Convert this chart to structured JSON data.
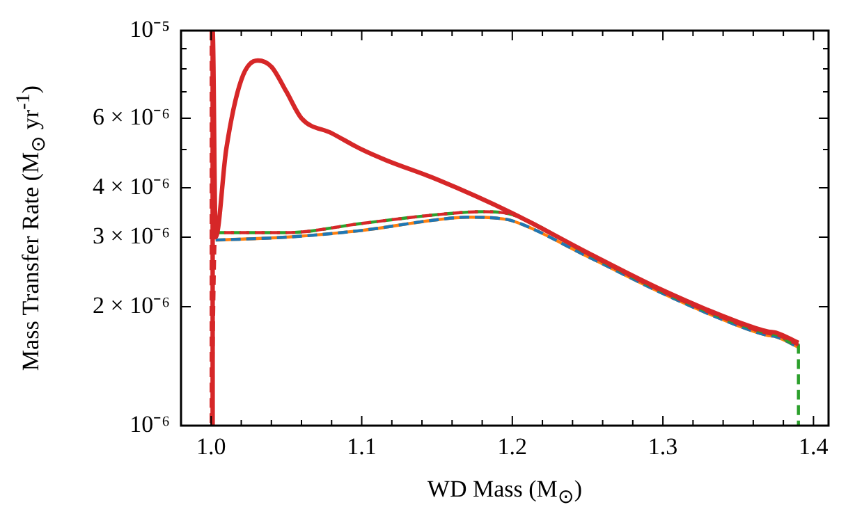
{
  "chart_data": {
    "type": "line",
    "xlabel": "WD Mass (M$_{⊙}$)",
    "ylabel": "Mass Transfer Rate (M$_{⊙}$ yr$^{-1}$)",
    "xlim": [
      0.98,
      1.41
    ],
    "xticks": [
      {
        "value": 1,
        "label": "1.0"
      },
      {
        "value": 1.02,
        "label": null
      },
      {
        "value": 1.04,
        "label": null
      },
      {
        "value": 1.06,
        "label": null
      },
      {
        "value": 1.08,
        "label": null
      },
      {
        "value": 1.1,
        "label": "1.1"
      },
      {
        "value": 1.12,
        "label": null
      },
      {
        "value": 1.14,
        "label": null
      },
      {
        "value": 1.16,
        "label": null
      },
      {
        "value": 1.18,
        "label": null
      },
      {
        "value": 1.2,
        "label": "1.2"
      },
      {
        "value": 1.22,
        "label": null
      },
      {
        "value": 1.24,
        "label": null
      },
      {
        "value": 1.26,
        "label": null
      },
      {
        "value": 1.28,
        "label": null
      },
      {
        "value": 1.3,
        "label": "1.3"
      },
      {
        "value": 1.32,
        "label": null
      },
      {
        "value": 1.34,
        "label": null
      },
      {
        "value": 1.36,
        "label": null
      },
      {
        "value": 1.38,
        "label": null
      },
      {
        "value": 1.4,
        "label": "1.4"
      }
    ],
    "ylim": [
      1e-06,
      1e-05
    ],
    "log": true,
    "yticks": [
      {
        "value": 1e-06,
        "label": "10⁻⁶"
      },
      {
        "value": 2e-06,
        "label": "2 × 10⁻⁶"
      },
      {
        "value": 3e-06,
        "label": "3 × 10⁻⁶"
      },
      {
        "value": 4e-06,
        "label": "4 × 10⁻⁶"
      },
      {
        "value": 5e-06,
        "label": null
      },
      {
        "value": 6e-06,
        "label": "6 × 10⁻⁶"
      },
      {
        "value": 7e-06,
        "label": null
      },
      {
        "value": 8e-06,
        "label": null
      },
      {
        "value": 9e-06,
        "label": null
      },
      {
        "value": 1e-05,
        "label": "10⁻⁵"
      }
    ],
    "grid": false,
    "legend": false,
    "marker": "none",
    "series": [
      {
        "color": "#ff7f0e",
        "line_style": "solid",
        "x": [
          1.003,
          1.05,
          1.1,
          1.15,
          1.17,
          1.19,
          1.2,
          1.25,
          1.3,
          1.35,
          1.37,
          1.375,
          1.39
        ],
        "values": [
          2.95e-06,
          3e-06,
          3.12e-06,
          3.32e-06,
          3.37e-06,
          3.35e-06,
          3.3e-06,
          2.68e-06,
          2.16e-06,
          1.79e-06,
          1.69e-06,
          1.68e-06,
          1.58e-06
        ]
      },
      {
        "color": "#1f77b4",
        "line_style": "dashed",
        "x": [
          1.003,
          1.05,
          1.1,
          1.15,
          1.17,
          1.19,
          1.2,
          1.25,
          1.3,
          1.35,
          1.37,
          1.375,
          1.39
        ],
        "values": [
          2.95e-06,
          3e-06,
          3.12e-06,
          3.32e-06,
          3.37e-06,
          3.35e-06,
          3.3e-06,
          2.68e-06,
          2.16e-06,
          1.79e-06,
          1.69e-06,
          1.68e-06,
          1.58e-06
        ]
      },
      {
        "color": "#2ca02c",
        "line_style": "dashed",
        "x": [
          1.003,
          1.05,
          1.1,
          1.15,
          1.18,
          1.2,
          1.25,
          1.3,
          1.35,
          1.37,
          1.375,
          1.39,
          1.39
        ],
        "values": [
          3.08e-06,
          3.08e-06,
          3.25e-06,
          3.42e-06,
          3.48e-06,
          3.42e-06,
          2.72e-06,
          2.18e-06,
          1.81e-06,
          1.71e-06,
          1.7e-06,
          1.6e-06,
          1e-06
        ]
      },
      {
        "color": "#d62728",
        "line_style": "dashed",
        "x": [
          1.0,
          1.0,
          1.003,
          1.05,
          1.1,
          1.15,
          1.18,
          1.2,
          1.25,
          1.3,
          1.35,
          1.37,
          1.375,
          1.39
        ],
        "values": [
          1e-05,
          1e-06,
          3.08e-06,
          3.08e-06,
          3.25e-06,
          3.42e-06,
          3.48e-06,
          3.42e-06,
          2.72e-06,
          2.18e-06,
          1.81e-06,
          1.71e-06,
          1.7e-06,
          1.6e-06
        ]
      },
      {
        "color": "#d62728",
        "line_style": "solid",
        "x": [
          1.001,
          1.001,
          1.003,
          1.01,
          1.02,
          1.031,
          1.04,
          1.05,
          1.06,
          1.08,
          1.1,
          1.116,
          1.15,
          1.2,
          1.25,
          1.3,
          1.35,
          1.37,
          1.375,
          1.39
        ],
        "values": [
          1e-06,
          1e-05,
          3e-06,
          5e-06,
          7.5e-06,
          8.4e-06,
          8.1e-06,
          7e-06,
          6e-06,
          5.5e-06,
          5e-06,
          4.7e-06,
          4.2e-06,
          3.45e-06,
          2.74e-06,
          2.2e-06,
          1.83e-06,
          1.73e-06,
          1.72e-06,
          1.62e-06
        ]
      }
    ]
  }
}
